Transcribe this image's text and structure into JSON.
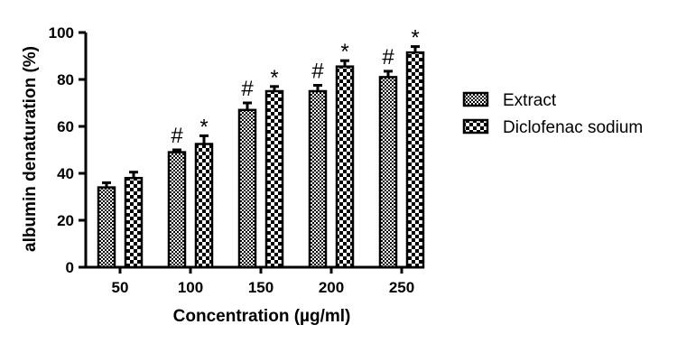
{
  "chart_data": {
    "type": "bar",
    "categories": [
      "50",
      "100",
      "150",
      "200",
      "250"
    ],
    "series": [
      {
        "name": "Extract",
        "values": [
          34,
          49,
          67,
          75,
          81
        ],
        "errors": [
          2,
          1,
          3,
          2.5,
          2.5
        ],
        "annotations": [
          "",
          "#",
          "#",
          "#",
          "#"
        ],
        "pattern": "dense-checker"
      },
      {
        "name": "Diclofenac sodium",
        "values": [
          38,
          52.5,
          75,
          85.5,
          91.5
        ],
        "errors": [
          2.5,
          3.5,
          2,
          2.5,
          2.5
        ],
        "annotations": [
          "",
          "*",
          "*",
          "*",
          "*"
        ],
        "pattern": "coarse-checker"
      }
    ],
    "xlabel": "Concentration (µg/ml)",
    "ylabel": "albumin denaturation (%)",
    "ylim": [
      0,
      100
    ],
    "yticks": [
      "0",
      "20",
      "40",
      "60",
      "80",
      "100"
    ],
    "grid": false,
    "legend_position": "right",
    "colors": {
      "bar_fill": "#ffffff",
      "bar_ink": "#000000"
    }
  }
}
